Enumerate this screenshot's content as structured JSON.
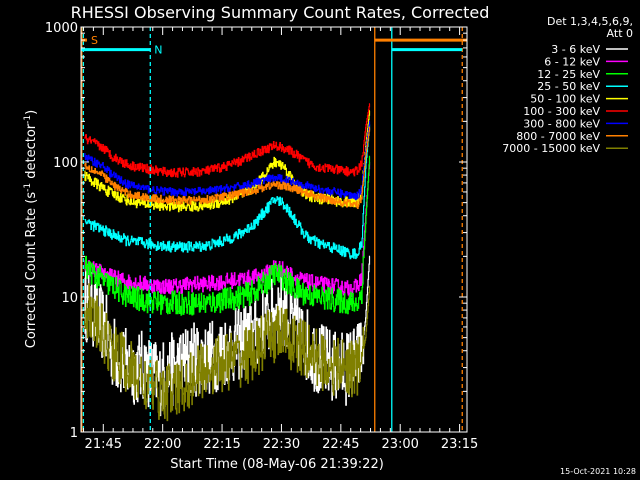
{
  "chart_data": {
    "type": "line",
    "title": "RHESSI Observing Summary Count Rates, Corrected",
    "xlabel": "Start Time (08-May-06 21:39:22)",
    "ylabel_parts": [
      "Corrected Count Rate (s",
      "-1",
      " detector",
      "-1",
      ")"
    ],
    "x_unit": "minutes since 21:39:22",
    "xlim": [
      0,
      97.5
    ],
    "ylim": [
      1,
      1000
    ],
    "yscale": "log",
    "x_ticks": [
      {
        "label": "21:45",
        "value": 5.63
      },
      {
        "label": "22:00",
        "value": 20.63
      },
      {
        "label": "22:15",
        "value": 35.63
      },
      {
        "label": "22:30",
        "value": 50.63
      },
      {
        "label": "22:45",
        "value": 65.63
      },
      {
        "label": "23:00",
        "value": 80.63
      },
      {
        "label": "23:15",
        "value": 95.63
      }
    ],
    "y_ticks": [
      {
        "label": "1",
        "value": 1
      },
      {
        "label": "10",
        "value": 10
      },
      {
        "label": "100",
        "value": 100
      },
      {
        "label": "1000",
        "value": 1000
      }
    ],
    "legend_header": [
      "Det 1,3,4,5,6,9,",
      "Att 0"
    ],
    "series": [
      {
        "name": "3 - 6 keV",
        "color": "#ffffff",
        "noise": 0.28,
        "points": [
          [
            1,
            9
          ],
          [
            3,
            8
          ],
          [
            6,
            6
          ],
          [
            8,
            4
          ],
          [
            12,
            3
          ],
          [
            16,
            3
          ],
          [
            20,
            2.5
          ],
          [
            24,
            3
          ],
          [
            28,
            3.5
          ],
          [
            32,
            3.5
          ],
          [
            36,
            4
          ],
          [
            40,
            4.5
          ],
          [
            44,
            5.5
          ],
          [
            48,
            7
          ],
          [
            50,
            8.5
          ],
          [
            52,
            8
          ],
          [
            54,
            6
          ],
          [
            57,
            4.5
          ],
          [
            60,
            3.5
          ],
          [
            64,
            3
          ],
          [
            67,
            3
          ],
          [
            70,
            3.5
          ],
          [
            71,
            4
          ],
          [
            72,
            7
          ],
          [
            73,
            20
          ]
        ]
      },
      {
        "name": "6 - 12 keV",
        "color": "#ff00ff",
        "noise": 0.06,
        "points": [
          [
            1,
            17
          ],
          [
            3,
            16
          ],
          [
            6,
            15
          ],
          [
            8,
            14
          ],
          [
            12,
            13
          ],
          [
            16,
            12.5
          ],
          [
            20,
            12
          ],
          [
            24,
            12
          ],
          [
            28,
            12.5
          ],
          [
            32,
            12.5
          ],
          [
            36,
            13
          ],
          [
            40,
            13.5
          ],
          [
            44,
            14
          ],
          [
            47,
            15
          ],
          [
            49,
            17
          ],
          [
            51,
            16
          ],
          [
            54,
            14
          ],
          [
            57,
            13
          ],
          [
            60,
            12.5
          ],
          [
            64,
            12
          ],
          [
            68,
            11.5
          ],
          [
            70,
            12
          ],
          [
            71,
            14
          ],
          [
            72,
            40
          ],
          [
            73,
            100
          ]
        ]
      },
      {
        "name": "12 - 25 keV",
        "color": "#00ff00",
        "noise": 0.09,
        "points": [
          [
            1,
            17
          ],
          [
            3,
            15
          ],
          [
            6,
            13
          ],
          [
            8,
            12
          ],
          [
            12,
            10
          ],
          [
            16,
            9.5
          ],
          [
            20,
            9
          ],
          [
            24,
            9
          ],
          [
            28,
            9
          ],
          [
            32,
            9
          ],
          [
            36,
            9.5
          ],
          [
            40,
            10
          ],
          [
            44,
            11
          ],
          [
            47,
            13
          ],
          [
            49,
            15
          ],
          [
            51,
            14
          ],
          [
            54,
            11.5
          ],
          [
            57,
            10.5
          ],
          [
            60,
            10
          ],
          [
            64,
            9.5
          ],
          [
            68,
            9
          ],
          [
            70,
            9
          ],
          [
            71,
            11
          ],
          [
            72,
            35
          ],
          [
            73,
            110
          ]
        ]
      },
      {
        "name": "25 - 50 keV",
        "color": "#00ffff",
        "noise": 0.04,
        "points": [
          [
            1,
            37
          ],
          [
            3,
            34
          ],
          [
            6,
            31
          ],
          [
            8,
            29
          ],
          [
            12,
            26
          ],
          [
            16,
            25
          ],
          [
            20,
            24
          ],
          [
            24,
            23.5
          ],
          [
            28,
            23.5
          ],
          [
            32,
            24
          ],
          [
            36,
            26
          ],
          [
            40,
            29
          ],
          [
            44,
            35
          ],
          [
            47,
            45
          ],
          [
            49,
            53
          ],
          [
            51,
            50
          ],
          [
            53,
            42
          ],
          [
            55,
            34
          ],
          [
            57,
            28
          ],
          [
            60,
            25
          ],
          [
            64,
            23
          ],
          [
            68,
            21
          ],
          [
            70,
            21
          ],
          [
            71,
            25
          ],
          [
            72,
            90
          ],
          [
            73,
            190
          ]
        ]
      },
      {
        "name": "50 - 100 keV",
        "color": "#ffff00",
        "noise": 0.04,
        "points": [
          [
            1,
            80
          ],
          [
            3,
            72
          ],
          [
            6,
            63
          ],
          [
            8,
            58
          ],
          [
            12,
            52
          ],
          [
            16,
            49
          ],
          [
            20,
            48
          ],
          [
            24,
            47
          ],
          [
            28,
            47
          ],
          [
            32,
            48
          ],
          [
            36,
            51
          ],
          [
            40,
            56
          ],
          [
            44,
            65
          ],
          [
            47,
            85
          ],
          [
            49,
            100
          ],
          [
            51,
            95
          ],
          [
            53,
            78
          ],
          [
            55,
            64
          ],
          [
            57,
            57
          ],
          [
            60,
            54
          ],
          [
            64,
            52
          ],
          [
            68,
            50
          ],
          [
            70,
            51
          ],
          [
            71,
            60
          ],
          [
            72,
            130
          ],
          [
            73,
            240
          ]
        ]
      },
      {
        "name": "100 - 300 keV",
        "color": "#ff0000",
        "noise": 0.035,
        "points": [
          [
            1,
            150
          ],
          [
            3,
            140
          ],
          [
            6,
            125
          ],
          [
            8,
            110
          ],
          [
            12,
            95
          ],
          [
            16,
            90
          ],
          [
            20,
            85
          ],
          [
            24,
            83
          ],
          [
            28,
            84
          ],
          [
            32,
            86
          ],
          [
            36,
            92
          ],
          [
            40,
            100
          ],
          [
            44,
            115
          ],
          [
            47,
            125
          ],
          [
            49,
            132
          ],
          [
            51,
            128
          ],
          [
            53,
            120
          ],
          [
            55,
            110
          ],
          [
            57,
            100
          ],
          [
            60,
            92
          ],
          [
            64,
            88
          ],
          [
            68,
            85
          ],
          [
            70,
            85
          ],
          [
            71,
            100
          ],
          [
            72,
            180
          ],
          [
            73,
            270
          ]
        ]
      },
      {
        "name": "300 - 800 keV",
        "color": "#0000ff",
        "noise": 0.03,
        "points": [
          [
            1,
            110
          ],
          [
            3,
            102
          ],
          [
            6,
            92
          ],
          [
            8,
            80
          ],
          [
            12,
            68
          ],
          [
            16,
            64
          ],
          [
            20,
            61
          ],
          [
            24,
            60
          ],
          [
            28,
            60
          ],
          [
            32,
            61
          ],
          [
            36,
            63
          ],
          [
            40,
            66
          ],
          [
            44,
            70
          ],
          [
            47,
            74
          ],
          [
            49,
            76
          ],
          [
            51,
            75
          ],
          [
            53,
            72
          ],
          [
            55,
            70
          ],
          [
            57,
            67
          ],
          [
            60,
            63
          ],
          [
            64,
            60
          ],
          [
            68,
            57
          ],
          [
            70,
            56
          ],
          [
            71,
            65
          ],
          [
            72,
            120
          ],
          [
            73,
            200
          ]
        ]
      },
      {
        "name": "800 - 7000 keV",
        "color": "#ff8000",
        "noise": 0.03,
        "points": [
          [
            1,
            95
          ],
          [
            3,
            88
          ],
          [
            6,
            78
          ],
          [
            8,
            68
          ],
          [
            12,
            58
          ],
          [
            16,
            55
          ],
          [
            20,
            53
          ],
          [
            24,
            52
          ],
          [
            28,
            52
          ],
          [
            32,
            53
          ],
          [
            36,
            55
          ],
          [
            40,
            58
          ],
          [
            44,
            62
          ],
          [
            47,
            66
          ],
          [
            49,
            68
          ],
          [
            51,
            67
          ],
          [
            53,
            64
          ],
          [
            55,
            62
          ],
          [
            57,
            59
          ],
          [
            60,
            55
          ],
          [
            64,
            52
          ],
          [
            68,
            49
          ],
          [
            70,
            48
          ],
          [
            71,
            55
          ],
          [
            72,
            110
          ],
          [
            73,
            180
          ]
        ]
      },
      {
        "name": "7000 - 15000 keV",
        "color": "#808000",
        "noise": 0.22,
        "points": [
          [
            1,
            9
          ],
          [
            3,
            7
          ],
          [
            6,
            5
          ],
          [
            8,
            4
          ],
          [
            12,
            3
          ],
          [
            16,
            2.3
          ],
          [
            20,
            2
          ],
          [
            24,
            2
          ],
          [
            28,
            2.5
          ],
          [
            32,
            3
          ],
          [
            36,
            3.3
          ],
          [
            40,
            3.5
          ],
          [
            44,
            4
          ],
          [
            48,
            5
          ],
          [
            50,
            5.5
          ],
          [
            52,
            5
          ],
          [
            54,
            4.5
          ],
          [
            57,
            4
          ],
          [
            60,
            3.5
          ],
          [
            64,
            3
          ],
          [
            67,
            3
          ],
          [
            70,
            3
          ],
          [
            71,
            3.5
          ],
          [
            72,
            5
          ],
          [
            73,
            12
          ]
        ]
      }
    ],
    "flags": [
      {
        "label": "S",
        "color": "#ff8000",
        "segments": [
          [
            0,
            1.5
          ],
          [
            74.2,
            97.5
          ]
        ],
        "level": 800
      },
      {
        "label": "N",
        "color": "#00ffff",
        "segments": [
          [
            0,
            17.5
          ],
          [
            78.5,
            96.3
          ]
        ],
        "level": 680
      }
    ],
    "vlines": [
      {
        "x": 0.2,
        "color": "#ff8000",
        "style": "solid"
      },
      {
        "x": 0.6,
        "color": "#00ffff",
        "style": "dashed"
      },
      {
        "x": 17.5,
        "color": "#00ffff",
        "style": "dashed"
      },
      {
        "x": 74.2,
        "color": "#ff8000",
        "style": "solid"
      },
      {
        "x": 78.5,
        "color": "#00ffff",
        "style": "solid"
      },
      {
        "x": 96.3,
        "color": "#ff8000",
        "style": "dashed"
      }
    ],
    "timestamp": "15-Oct-2021 10:28"
  }
}
